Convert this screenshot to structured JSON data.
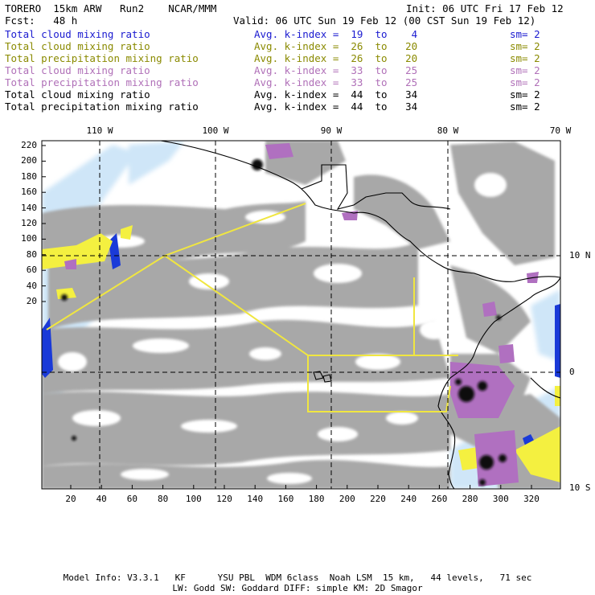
{
  "header": {
    "model": "TORERO  15km ARW   Run2    NCAR/MMM",
    "init": "Init: 06 UTC Fri 17 Feb 12",
    "fcst": "Fcst:   48 h",
    "valid": "Valid: 06 UTC Sun 19 Feb 12 (00 CST Sun 19 Feb 12)"
  },
  "legend": [
    {
      "field": "Total cloud mixing ratio",
      "kindex": "Avg. k-index =  19  to    4",
      "sm": "sm= 2",
      "color": "#1a1ad0"
    },
    {
      "field": "Total cloud mixing ratio",
      "kindex": "Avg. k-index =  26  to   20",
      "sm": "sm= 2",
      "color": "#8a8a00"
    },
    {
      "field": "Total precipitation mixing ratio",
      "kindex": "Avg. k-index =  26  to   20",
      "sm": "sm= 2",
      "color": "#8a8a00"
    },
    {
      "field": "Total cloud mixing ratio",
      "kindex": "Avg. k-index =  33  to   25",
      "sm": "sm= 2",
      "color": "#b070b8"
    },
    {
      "field": "Total precipitation mixing ratio",
      "kindex": "Avg. k-index =  33  to   25",
      "sm": "sm= 2",
      "color": "#b070b8"
    },
    {
      "field": "Total cloud mixing ratio",
      "kindex": "Avg. k-index =  44  to   34",
      "sm": "sm= 2",
      "color": "#000000"
    },
    {
      "field": "Total precipitation mixing ratio",
      "kindex": "Avg. k-index =  44  to   34",
      "sm": "sm= 2",
      "color": "#000000"
    }
  ],
  "map": {
    "lon_labels": [
      "110 W",
      "100 W",
      "90 W",
      "80 W",
      "70 W"
    ],
    "lat_labels": [
      "10 N",
      "0",
      "10 S"
    ],
    "y_ticks": [
      "220",
      "200",
      "180",
      "160",
      "140",
      "120",
      "100",
      "80",
      "60",
      "40",
      "20"
    ],
    "x_ticks": [
      "20",
      "40",
      "60",
      "80",
      "100",
      "120",
      "140",
      "160",
      "180",
      "200",
      "220",
      "240",
      "260",
      "280",
      "300",
      "320"
    ],
    "colors": {
      "gray": "#a8a8a8",
      "light_blue": "#cfe6f8",
      "blue": "#1a3ad8",
      "yellow": "#f4f040",
      "purple": "#b070c0",
      "black": "#101010",
      "grid": "#000000",
      "box": "#f0e640"
    }
  },
  "footer": {
    "line1": "Model Info: V3.3.1   KF      YSU PBL  WDM 6class  Noah LSM  15 km,   44 levels,   71 sec",
    "line2": "LW: Godd SW: Goddard DIFF: simple KM: 2D Smagor"
  }
}
